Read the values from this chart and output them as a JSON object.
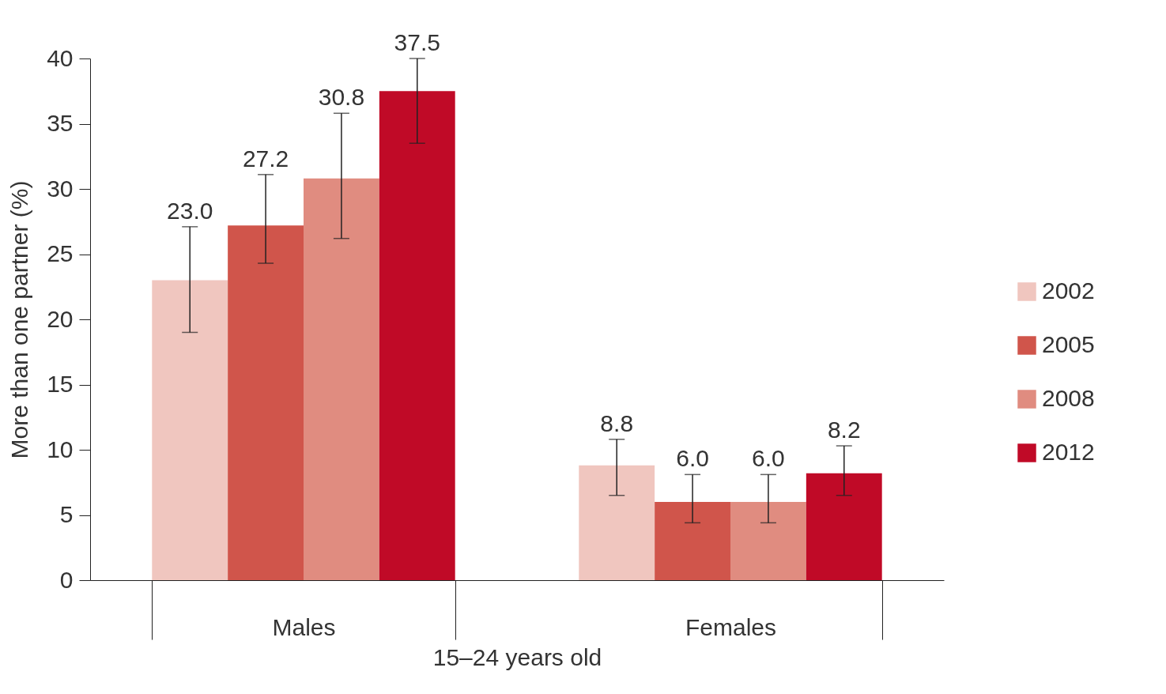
{
  "chart_data": {
    "type": "bar",
    "ylabel": "More than one partner (%)",
    "xlabel": "15–24 years old",
    "categories": [
      "Males",
      "Females"
    ],
    "ylim": [
      0,
      40
    ],
    "yticks": [
      0,
      5,
      10,
      15,
      20,
      25,
      30,
      35,
      40
    ],
    "legend": "right",
    "series": [
      {
        "name": "2002",
        "color": "#f0c6bf",
        "values": [
          23.0,
          8.8
        ],
        "value_labels": [
          "23.0",
          "8.8"
        ],
        "errors": [
          [
            19.0,
            27.1
          ],
          [
            6.5,
            10.8
          ]
        ]
      },
      {
        "name": "2005",
        "color": "#d0554b",
        "values": [
          27.2,
          6.0
        ],
        "value_labels": [
          "27.2",
          "6.0"
        ],
        "errors": [
          [
            24.3,
            31.1
          ],
          [
            4.4,
            8.1
          ]
        ]
      },
      {
        "name": "2008",
        "color": "#e08c80",
        "values": [
          30.8,
          6.0
        ],
        "value_labels": [
          "30.8",
          "6.0"
        ],
        "errors": [
          [
            26.2,
            35.8
          ],
          [
            4.4,
            8.1
          ]
        ]
      },
      {
        "name": "2012",
        "color": "#c00a27",
        "values": [
          37.5,
          8.2
        ],
        "value_labels": [
          "37.5",
          "8.2"
        ],
        "errors": [
          [
            33.5,
            40.0
          ],
          [
            6.5,
            10.3
          ]
        ]
      }
    ]
  }
}
